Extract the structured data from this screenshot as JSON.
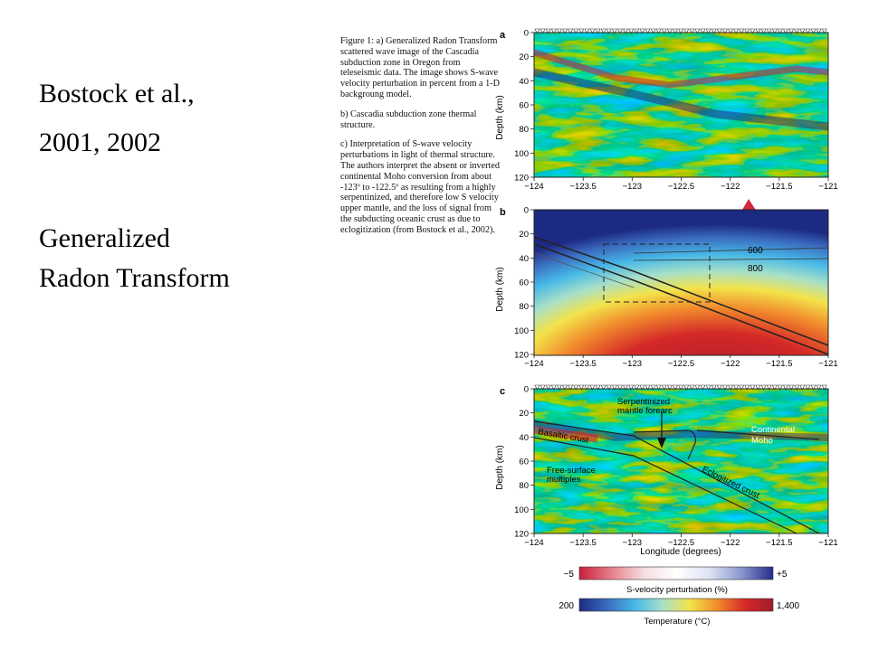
{
  "slide": {
    "author_line1": "Bostock et al.,",
    "author_line2": "2001, 2002",
    "method_line1": "Generalized",
    "method_line2": "Radon Transform"
  },
  "caption": {
    "a": "Figure 1: a) Generalized Radon Transform scattered wave image of  the Cascadia subduction zone in Oregon from teleseismic data. The image shows S-wave velocity perturbation in percent from a 1-D backgroung model.",
    "b": "b) Cascadia subduction zone thermal structure.",
    "c": "c) Interpretation of S-wave velocity perturbations in light of thermal structure. The authors interpret the absent or inverted continental Moho  conversion from about  -123º to -122.5º as resulting from a highly serpentinized, and therefore low S velocity upper mantle, and the loss of signal from the subducting oceanic crust as due to eclogitization (from Bostock et al., 2002)."
  },
  "panels": {
    "a": {
      "label": "a"
    },
    "b": {
      "label": "b",
      "contour_600": "600",
      "contour_800": "800"
    },
    "c": {
      "label": "c",
      "ann_serpentinized_1": "Serpentinized",
      "ann_serpentinized_2": "mantle forearc",
      "ann_continental": "Continental",
      "ann_moho": "Moho",
      "ann_basaltic": "Basaltic crust",
      "ann_eclogitized": "Eclogitized crust",
      "ann_freesurface_1": "Free-surface",
      "ann_freesurface_2": "multiples",
      "xlabel": "Longitude (degrees)"
    }
  },
  "axes": {
    "ylabel": "Depth (km)",
    "yticks": [
      "0",
      "20",
      "40",
      "60",
      "80",
      "100",
      "120"
    ],
    "xticks": [
      "−124",
      "−123.5",
      "−123",
      "−122.5",
      "−122",
      "−121.5",
      "−121"
    ]
  },
  "colorbars": {
    "velocity": {
      "min": "−5",
      "max": "+5",
      "label": "S-velocity perturbation (%)",
      "colors": [
        "#c8203a",
        "#e6808c",
        "#f6dde0",
        "#ffffff",
        "#dfe4f4",
        "#8c98d0",
        "#262b8a"
      ]
    },
    "temperature": {
      "min": "200",
      "max": "1,400",
      "label": "Temperature (°C)",
      "colors": [
        "#1d2a82",
        "#3a6cc0",
        "#47b8e6",
        "#a8e0c8",
        "#f3e34a",
        "#f18a2c",
        "#d42828",
        "#a01c2c"
      ]
    }
  },
  "colors": {
    "accent_red": "#d42a3c",
    "text": "#000000"
  }
}
